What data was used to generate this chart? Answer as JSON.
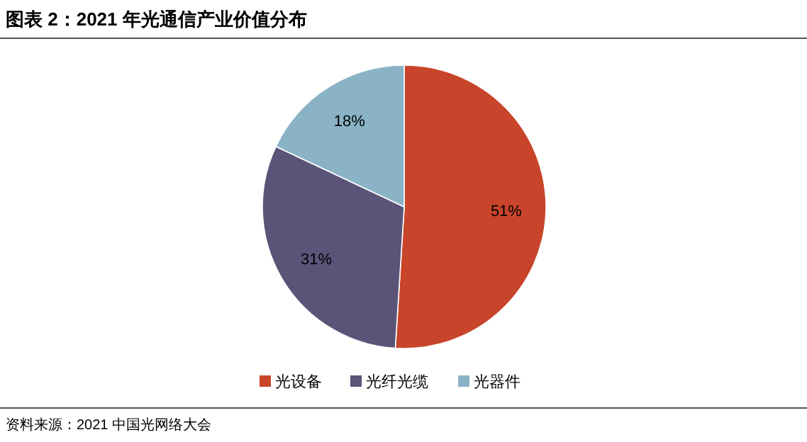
{
  "chart_data": {
    "type": "pie",
    "title": "图表 2：2021 年光通信产业价值分布",
    "categories": [
      "光设备",
      "光纤光缆",
      "光器件"
    ],
    "values": [
      51,
      31,
      18
    ],
    "colors": [
      "#c8442a",
      "#5a5478",
      "#8ab3c6"
    ],
    "value_labels": [
      "51%",
      "31%",
      "18%"
    ],
    "legend": "bottom",
    "annotations": [
      "资料来源：2021 中国光网络大会"
    ]
  }
}
